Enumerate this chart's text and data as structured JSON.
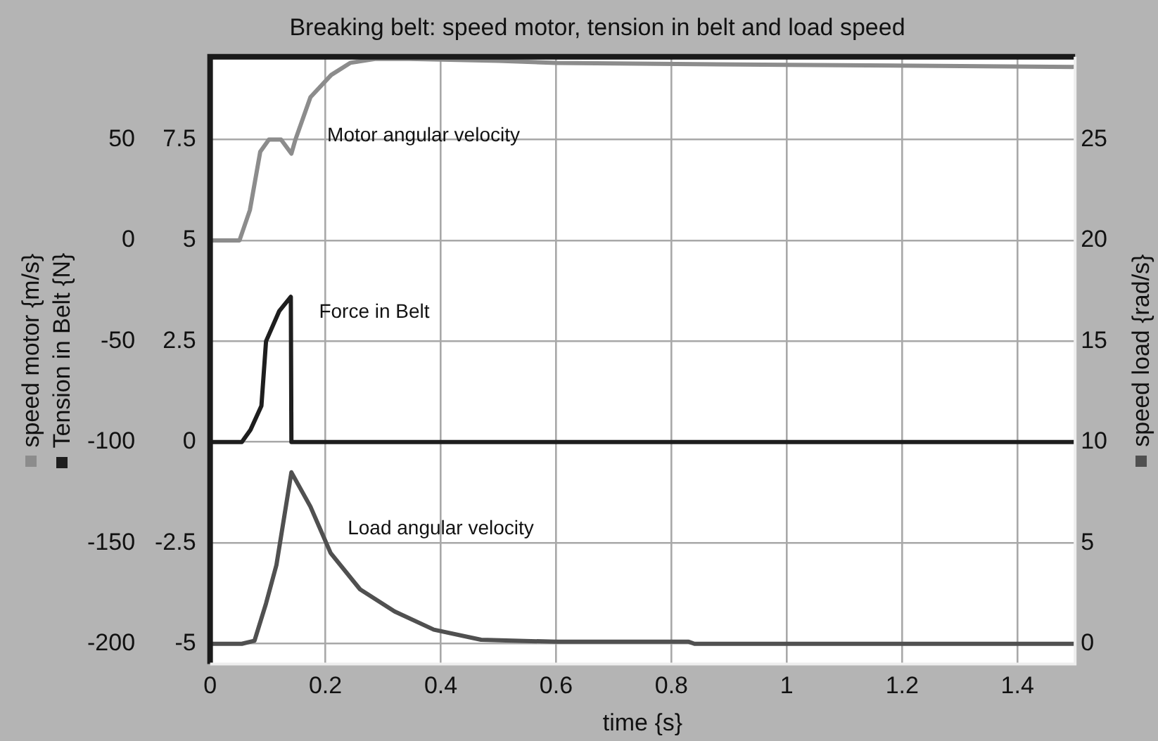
{
  "chart_data": {
    "type": "line",
    "title": "Breaking belt: speed motor, tension in belt and load speed",
    "xlabel": "time {s}",
    "ylabel": "speed motor {m/s}",
    "y3label": "Tension in Belt {N}",
    "y2label": "speed load {rad/s}",
    "xlim": [
      0,
      1.5
    ],
    "xticks": [
      0,
      0.2,
      0.4,
      0.6,
      0.8,
      1,
      1.2,
      1.4
    ],
    "ylim": [
      -210,
      91
    ],
    "yticks": [
      -200,
      -150,
      -100,
      -50,
      0,
      50
    ],
    "y3lim": [
      -5.5,
      9.55
    ],
    "y3ticks": [
      -5,
      -2.5,
      0,
      2.5,
      5,
      7.5
    ],
    "y2lim": [
      -1,
      29.1
    ],
    "y2ticks": [
      0,
      5,
      10,
      15,
      20,
      25
    ],
    "grid": true,
    "marker": "none",
    "line_style": "solid",
    "series": [
      {
        "name": "Motor angular velocity",
        "color": "#8c8c8c",
        "axis": "y",
        "x": [
          0,
          0.051,
          0.069,
          0.087,
          0.102,
          0.123,
          0.141,
          0.148,
          0.174,
          0.21,
          0.243,
          0.286,
          0.345,
          0.5,
          0.6,
          1.0,
          1.5
        ],
        "values": [
          0,
          0,
          15,
          44,
          50,
          50,
          43,
          50,
          71,
          82,
          88,
          90,
          90,
          89,
          88,
          87,
          86
        ]
      },
      {
        "name": "Force in Belt",
        "color": "#1e1e1e",
        "axis": "y3",
        "x": [
          0,
          0.055,
          0.07,
          0.089,
          0.097,
          0.12,
          0.14,
          0.141,
          1.5
        ],
        "values": [
          0,
          0,
          0.3,
          0.9,
          2.5,
          3.25,
          3.6,
          0,
          0
        ]
      },
      {
        "name": "Load angular velocity",
        "color": "#505050",
        "axis": "y2",
        "x": [
          0,
          0.055,
          0.077,
          0.097,
          0.115,
          0.141,
          0.174,
          0.209,
          0.26,
          0.32,
          0.388,
          0.47,
          0.6,
          0.83,
          0.84,
          1.5
        ],
        "values": [
          0,
          0,
          0.15,
          2.0,
          3.9,
          8.5,
          6.8,
          4.5,
          2.7,
          1.6,
          0.7,
          0.2,
          0.1,
          0.1,
          0,
          0
        ]
      }
    ]
  }
}
